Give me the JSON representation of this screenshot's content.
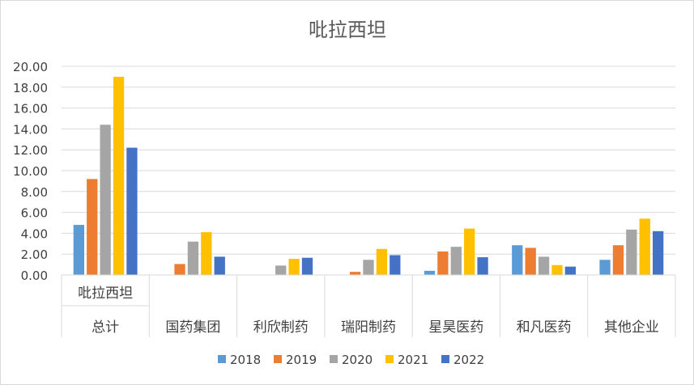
{
  "chart_data": {
    "type": "bar",
    "title": "吡拉西坦",
    "categories": [
      [
        "吡拉西坦",
        "总计"
      ],
      [
        "国药集团"
      ],
      [
        "利欣制药"
      ],
      [
        "瑞阳制药"
      ],
      [
        "星昊医药"
      ],
      [
        "和凡医药"
      ],
      [
        "其他企业"
      ]
    ],
    "ylim": [
      0,
      20
    ],
    "yticks": [
      "0.00",
      "2.00",
      "4.00",
      "6.00",
      "8.00",
      "10.00",
      "12.00",
      "14.00",
      "16.00",
      "18.00",
      "20.00"
    ],
    "grid": true,
    "legend_position": "bottom",
    "series": [
      {
        "name": "2018",
        "color": "#5B9BD5",
        "values": [
          4.8,
          0,
          0,
          0,
          0.4,
          2.85,
          1.45
        ]
      },
      {
        "name": "2019",
        "color": "#ED7D31",
        "values": [
          9.2,
          1.05,
          0,
          0.3,
          2.25,
          2.6,
          2.85
        ]
      },
      {
        "name": "2020",
        "color": "#A5A5A5",
        "values": [
          14.4,
          3.2,
          0.9,
          1.45,
          2.7,
          1.75,
          4.35
        ]
      },
      {
        "name": "2021",
        "color": "#FFC000",
        "values": [
          19.0,
          4.1,
          1.55,
          2.5,
          4.45,
          0.95,
          5.4
        ]
      },
      {
        "name": "2022",
        "color": "#4472C4",
        "values": [
          12.2,
          1.75,
          1.65,
          1.9,
          1.7,
          0.8,
          4.2
        ]
      }
    ]
  }
}
